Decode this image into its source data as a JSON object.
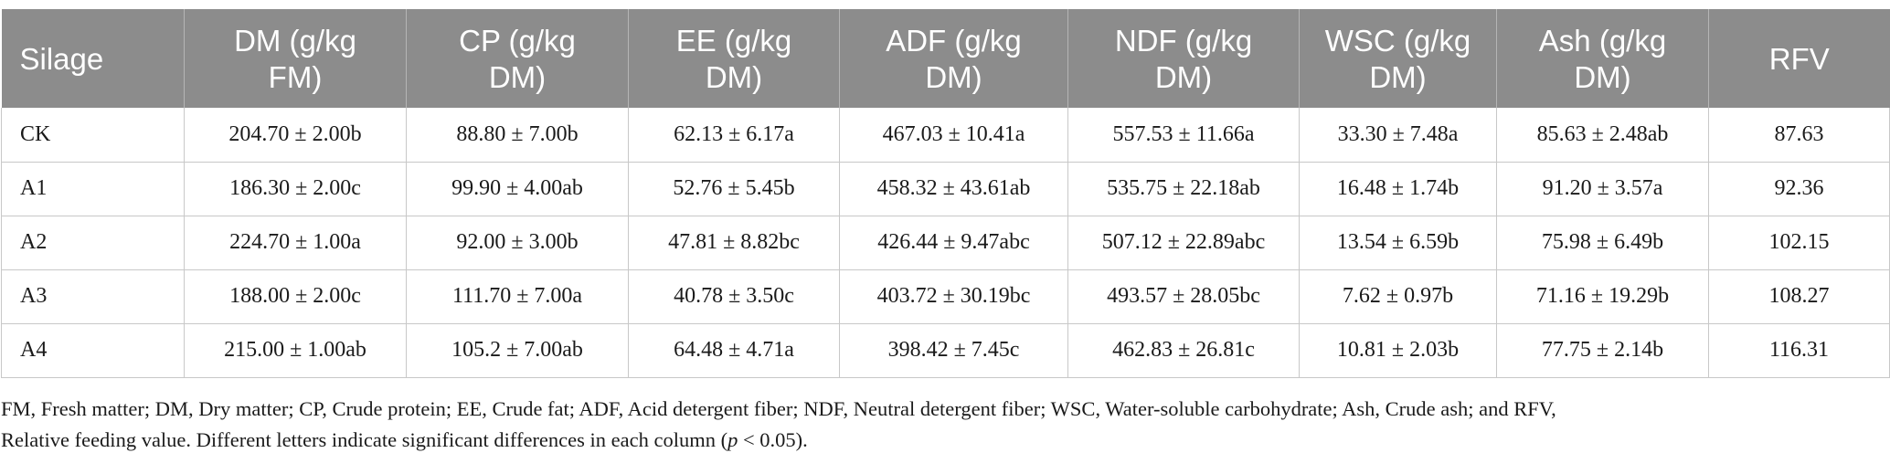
{
  "table": {
    "headers": [
      {
        "line1": "Silage",
        "line2": ""
      },
      {
        "line1": "DM (g/kg",
        "line2": "FM)"
      },
      {
        "line1": "CP (g/kg",
        "line2": "DM)"
      },
      {
        "line1": "EE (g/kg",
        "line2": "DM)"
      },
      {
        "line1": "ADF (g/kg",
        "line2": "DM)"
      },
      {
        "line1": "NDF (g/kg",
        "line2": "DM)"
      },
      {
        "line1": "WSC (g/kg",
        "line2": "DM)"
      },
      {
        "line1": "Ash (g/kg",
        "line2": "DM)"
      },
      {
        "line1": "RFV",
        "line2": ""
      }
    ],
    "rows": [
      [
        "CK",
        "204.70 ± 2.00b",
        "88.80 ± 7.00b",
        "62.13 ± 6.17a",
        "467.03 ± 10.41a",
        "557.53 ± 11.66a",
        "33.30 ± 7.48a",
        "85.63 ± 2.48ab",
        "87.63"
      ],
      [
        "A1",
        "186.30 ± 2.00c",
        "99.90 ± 4.00ab",
        "52.76 ± 5.45b",
        "458.32 ± 43.61ab",
        "535.75 ± 22.18ab",
        "16.48 ± 1.74b",
        "91.20 ± 3.57a",
        "92.36"
      ],
      [
        "A2",
        "224.70 ± 1.00a",
        "92.00 ± 3.00b",
        "47.81 ± 8.82bc",
        "426.44 ± 9.47abc",
        "507.12 ± 22.89abc",
        "13.54 ± 6.59b",
        "75.98 ± 6.49b",
        "102.15"
      ],
      [
        "A3",
        "188.00 ± 2.00c",
        "111.70 ± 7.00a",
        "40.78 ± 3.50c",
        "403.72 ± 30.19bc",
        "493.57 ± 28.05bc",
        "7.62 ± 0.97b",
        "71.16 ± 19.29b",
        "108.27"
      ],
      [
        "A4",
        "215.00 ± 1.00ab",
        "105.2 ± 7.00ab",
        "64.48 ± 4.71a",
        "398.42 ± 7.45c",
        "462.83 ± 26.81c",
        "10.81 ± 2.03b",
        "77.75 ± 2.14b",
        "116.31"
      ]
    ]
  },
  "footnote": {
    "line1": "FM, Fresh matter; DM, Dry matter; CP, Crude protein; EE, Crude fat; ADF, Acid detergent fiber; NDF, Neutral detergent fiber; WSC, Water-soluble carbohydrate; Ash, Crude ash; and RFV,",
    "line2_pre": "Relative feeding value. Different letters indicate significant differences in each column (",
    "line2_p": "p",
    "line2_post": " < 0.05)."
  },
  "colors": {
    "header_bg": "#8c8c8c",
    "header_text": "#ffffff",
    "grid": "#c8c8c8"
  }
}
